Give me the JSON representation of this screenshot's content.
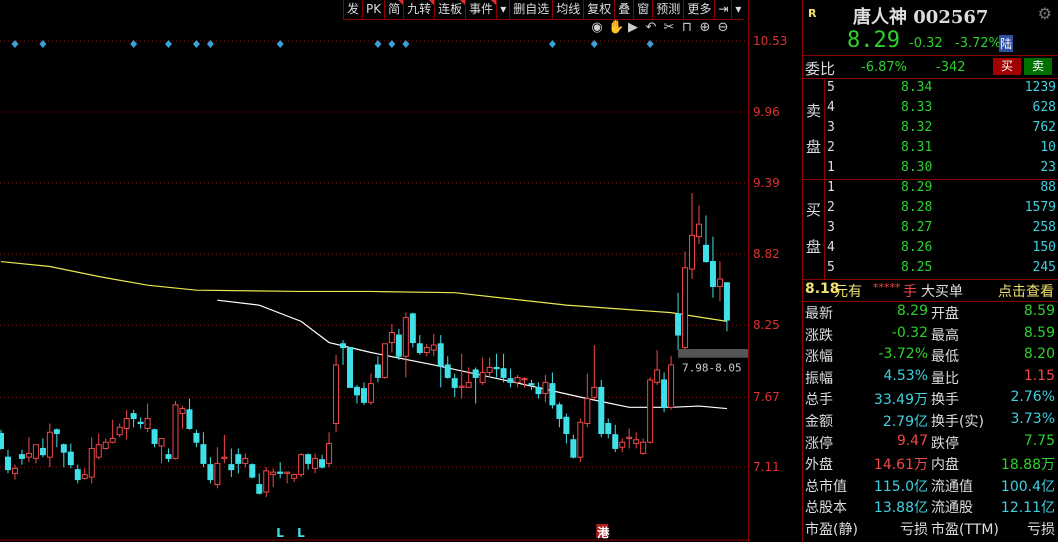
{
  "toolbar": {
    "items": [
      "发",
      "PK",
      "简",
      "九转",
      "连板",
      "事件",
      "▾",
      "删自选",
      "均线",
      "复权",
      "叠",
      "窗",
      "预测",
      "更多",
      "⇥",
      "▾"
    ],
    "view_icons": [
      "eye-icon",
      "hand-icon",
      "play-icon",
      "undo-icon",
      "scissors-icon",
      "lock-icon",
      "zoom-in-icon",
      "zoom-out-icon"
    ]
  },
  "colors": {
    "up": "#f04848",
    "down": "#40e0e8",
    "ma_long": "#e8e850",
    "ma_short": "#ffffff",
    "marker": "#3aa0d8",
    "grid": "#8b1010"
  },
  "chart_data": {
    "type": "candlestick",
    "y_ticks": [
      10.53,
      9.96,
      9.39,
      8.82,
      8.25,
      7.67,
      7.11
    ],
    "ylim": [
      6.69,
      10.86
    ],
    "grid": true,
    "candles": [
      [
        7.38,
        7.41,
        7.25,
        7.26
      ],
      [
        7.19,
        7.25,
        7.06,
        7.09
      ],
      [
        7.06,
        7.13,
        7.01,
        7.1
      ],
      [
        7.21,
        7.25,
        7.13,
        7.18
      ],
      [
        7.19,
        7.35,
        7.15,
        7.22
      ],
      [
        7.18,
        7.29,
        7.14,
        7.29
      ],
      [
        7.26,
        7.34,
        7.19,
        7.21
      ],
      [
        7.19,
        7.46,
        7.11,
        7.39
      ],
      [
        7.41,
        7.42,
        7.27,
        7.38
      ],
      [
        7.29,
        7.3,
        7.11,
        7.23
      ],
      [
        7.23,
        7.3,
        7.1,
        7.13
      ],
      [
        7.09,
        7.13,
        6.98,
        7.01
      ],
      [
        7.02,
        7.1,
        7.01,
        7.05
      ],
      [
        7.03,
        7.35,
        6.98,
        7.26
      ],
      [
        7.19,
        7.38,
        7.17,
        7.29
      ],
      [
        7.26,
        7.34,
        7.25,
        7.31
      ],
      [
        7.31,
        7.49,
        7.3,
        7.34
      ],
      [
        7.37,
        7.46,
        7.35,
        7.43
      ],
      [
        7.42,
        7.57,
        7.33,
        7.5
      ],
      [
        7.54,
        7.57,
        7.43,
        7.5
      ],
      [
        7.47,
        7.51,
        7.42,
        7.46
      ],
      [
        7.42,
        7.62,
        7.39,
        7.5
      ],
      [
        7.41,
        7.42,
        7.27,
        7.3
      ],
      [
        7.28,
        7.34,
        7.14,
        7.34
      ],
      [
        7.21,
        7.26,
        7.15,
        7.18
      ],
      [
        7.18,
        7.64,
        7.17,
        7.61
      ],
      [
        7.54,
        7.6,
        7.42,
        7.58
      ],
      [
        7.57,
        7.66,
        7.41,
        7.42
      ],
      [
        7.38,
        7.41,
        7.27,
        7.31
      ],
      [
        7.29,
        7.39,
        7.11,
        7.14
      ],
      [
        7.13,
        7.19,
        6.98,
        7.01
      ],
      [
        6.97,
        7.27,
        6.94,
        7.14
      ],
      [
        7.18,
        7.37,
        7.14,
        7.19
      ],
      [
        7.13,
        7.26,
        7.03,
        7.09
      ],
      [
        7.21,
        7.26,
        7.06,
        7.14
      ],
      [
        7.14,
        7.22,
        7.11,
        7.18
      ],
      [
        7.13,
        7.14,
        7.02,
        7.03
      ],
      [
        6.97,
        7.06,
        6.89,
        6.9
      ],
      [
        6.91,
        7.11,
        6.87,
        7.08
      ],
      [
        7.05,
        7.1,
        6.95,
        7.07
      ],
      [
        7.07,
        7.15,
        7.02,
        7.06
      ],
      [
        7.06,
        7.07,
        6.98,
        7.07
      ],
      [
        7.02,
        7.06,
        6.99,
        7.05
      ],
      [
        7.05,
        7.22,
        7.03,
        7.21
      ],
      [
        7.21,
        7.22,
        7.09,
        7.14
      ],
      [
        7.1,
        7.22,
        7.06,
        7.18
      ],
      [
        7.17,
        7.21,
        7.1,
        7.11
      ],
      [
        7.14,
        7.39,
        7.11,
        7.3
      ],
      [
        7.46,
        8.01,
        7.39,
        7.93
      ],
      [
        8.1,
        8.13,
        7.93,
        8.07
      ],
      [
        8.07,
        8.07,
        7.75,
        7.75
      ],
      [
        7.75,
        7.77,
        7.62,
        7.69
      ],
      [
        7.74,
        7.79,
        7.61,
        7.63
      ],
      [
        7.63,
        7.86,
        7.61,
        7.78
      ],
      [
        7.93,
        8.0,
        7.79,
        7.83
      ],
      [
        7.83,
        8.1,
        7.82,
        8.1
      ],
      [
        8.11,
        8.26,
        8.03,
        8.19
      ],
      [
        8.17,
        8.22,
        7.97,
        8.0
      ],
      [
        8.0,
        8.35,
        7.83,
        8.31
      ],
      [
        8.34,
        8.35,
        8.07,
        8.11
      ],
      [
        8.1,
        8.17,
        8.01,
        8.03
      ],
      [
        8.03,
        8.1,
        8.0,
        8.07
      ],
      [
        8.05,
        8.18,
        8.0,
        8.09
      ],
      [
        8.1,
        8.17,
        7.75,
        7.92
      ],
      [
        7.93,
        8.0,
        7.82,
        7.83
      ],
      [
        7.82,
        7.86,
        7.67,
        7.75
      ],
      [
        7.75,
        8.02,
        7.66,
        7.76
      ],
      [
        7.75,
        7.91,
        7.75,
        7.79
      ],
      [
        7.89,
        7.91,
        7.62,
        7.83
      ],
      [
        7.79,
        7.99,
        7.77,
        7.87
      ],
      [
        7.87,
        7.99,
        7.83,
        7.91
      ],
      [
        7.91,
        8.02,
        7.83,
        7.9
      ],
      [
        7.9,
        8.02,
        7.79,
        7.83
      ],
      [
        7.82,
        7.9,
        7.75,
        7.79
      ],
      [
        7.79,
        7.85,
        7.75,
        7.83
      ],
      [
        7.82,
        7.83,
        7.75,
        7.82
      ],
      [
        7.78,
        7.81,
        7.73,
        7.77
      ],
      [
        7.75,
        7.79,
        7.66,
        7.7
      ],
      [
        7.7,
        7.85,
        7.63,
        7.79
      ],
      [
        7.78,
        7.87,
        7.58,
        7.61
      ],
      [
        7.61,
        7.63,
        7.43,
        7.5
      ],
      [
        7.51,
        7.54,
        7.3,
        7.38
      ],
      [
        7.33,
        7.37,
        7.18,
        7.19
      ],
      [
        7.19,
        7.5,
        7.15,
        7.47
      ],
      [
        7.46,
        7.86,
        7.43,
        7.66
      ],
      [
        7.67,
        8.09,
        7.65,
        7.75
      ],
      [
        7.75,
        7.81,
        7.35,
        7.38
      ],
      [
        7.46,
        7.5,
        7.34,
        7.38
      ],
      [
        7.37,
        7.45,
        7.23,
        7.26
      ],
      [
        7.27,
        7.34,
        7.23,
        7.31
      ],
      [
        7.34,
        7.42,
        7.26,
        7.35
      ],
      [
        7.3,
        7.39,
        7.26,
        7.33
      ],
      [
        7.22,
        7.34,
        7.21,
        7.31
      ],
      [
        7.31,
        7.83,
        7.3,
        7.81
      ],
      [
        7.79,
        8.05,
        7.77,
        7.89
      ],
      [
        7.81,
        7.87,
        7.55,
        7.59
      ],
      [
        7.59,
        8.0,
        7.57,
        7.93
      ],
      [
        8.34,
        8.51,
        8.05,
        8.17
      ],
      [
        8.07,
        8.84,
        8.05,
        8.71
      ],
      [
        8.7,
        9.31,
        8.62,
        8.97
      ],
      [
        8.96,
        9.21,
        8.9,
        9.06
      ],
      [
        8.89,
        9.13,
        8.75,
        8.76
      ],
      [
        8.76,
        8.96,
        8.47,
        8.56
      ],
      [
        8.56,
        8.76,
        8.44,
        8.62
      ],
      [
        8.59,
        8.59,
        8.2,
        8.29
      ]
    ],
    "ma_lines": [
      {
        "color": "#e8e850",
        "points": [
          [
            0,
            8.76
          ],
          [
            7,
            8.72
          ],
          [
            14,
            8.64
          ],
          [
            21,
            8.57
          ],
          [
            28,
            8.53
          ],
          [
            43,
            8.52
          ],
          [
            53,
            8.52
          ],
          [
            65,
            8.51
          ],
          [
            81,
            8.41
          ],
          [
            96,
            8.35
          ],
          [
            104,
            8.28
          ]
        ]
      },
      {
        "color": "#ffffff",
        "points": [
          [
            31,
            8.45
          ],
          [
            37,
            8.41
          ],
          [
            43,
            8.28
          ],
          [
            47,
            8.11
          ],
          [
            53,
            8.03
          ],
          [
            62,
            7.93
          ],
          [
            72,
            7.81
          ],
          [
            84,
            7.66
          ],
          [
            90,
            7.59
          ],
          [
            96,
            7.59
          ],
          [
            100,
            7.6
          ],
          [
            104,
            7.58
          ]
        ]
      }
    ],
    "event_markers": [
      2,
      6,
      19,
      24,
      28,
      30,
      40,
      54,
      56,
      58,
      79,
      85,
      93
    ],
    "bottom_markers": [
      {
        "index": 40,
        "label": "L"
      },
      {
        "index": 43,
        "label": "L"
      },
      {
        "index": 86,
        "label": "港"
      }
    ],
    "gap": {
      "label": "7.98-8.05",
      "low": 7.98,
      "high": 8.05,
      "start_index": 97
    }
  },
  "quote": {
    "flag": "R",
    "title": "唐人神 002567",
    "price": "8.29",
    "change": "-0.32",
    "change_pct": "-3.72%",
    "market_badge": "陆",
    "weibi_label": "委比",
    "weibi_pct": "-6.87%",
    "weibi_diff": "-342",
    "buy_btn": "买",
    "sell_btn": "卖",
    "sell_label": [
      "卖",
      "盘"
    ],
    "buy_label": [
      "买",
      "盘"
    ],
    "asks": [
      {
        "level": "5",
        "price": "8.34",
        "vol": "1239"
      },
      {
        "level": "4",
        "price": "8.33",
        "vol": "628"
      },
      {
        "level": "3",
        "price": "8.32",
        "vol": "762"
      },
      {
        "level": "2",
        "price": "8.31",
        "vol": "10"
      },
      {
        "level": "1",
        "price": "8.30",
        "vol": "23"
      }
    ],
    "bids": [
      {
        "level": "1",
        "price": "8.29",
        "vol": "88"
      },
      {
        "level": "2",
        "price": "8.28",
        "vol": "1579"
      },
      {
        "level": "3",
        "price": "8.27",
        "vol": "258"
      },
      {
        "level": "4",
        "price": "8.26",
        "vol": "150"
      },
      {
        "level": "5",
        "price": "8.25",
        "vol": "245"
      }
    ],
    "big_order": {
      "price": "8.18",
      "text1": "元有",
      "stars": "*****",
      "text2": "手",
      "text3": "大买单",
      "link": "点击查看"
    },
    "stats": [
      {
        "l1": "最新",
        "v1": "8.29",
        "c1": "g",
        "l2": "开盘",
        "v2": "8.59",
        "c2": "g"
      },
      {
        "l1": "涨跌",
        "v1": "-0.32",
        "c1": "g",
        "l2": "最高",
        "v2": "8.59",
        "c2": "g"
      },
      {
        "l1": "涨幅",
        "v1": "-3.72%",
        "c1": "g",
        "l2": "最低",
        "v2": "8.20",
        "c2": "g"
      },
      {
        "l1": "振幅",
        "v1": "4.53%",
        "c1": "c",
        "l2": "量比",
        "v2": "1.15",
        "c2": "r"
      },
      {
        "l1": "总手",
        "v1": "33.49万",
        "c1": "c",
        "l2": "换手",
        "v2": "2.76%",
        "c2": "c"
      },
      {
        "l1": "金额",
        "v1": "2.79亿",
        "c1": "c",
        "l2": "换手(实)",
        "v2": "3.73%",
        "c2": "c"
      },
      {
        "l1": "涨停",
        "v1": "9.47",
        "c1": "r",
        "l2": "跌停",
        "v2": "7.75",
        "c2": "g"
      },
      {
        "l1": "外盘",
        "v1": "14.61万",
        "c1": "r",
        "l2": "内盘",
        "v2": "18.88万",
        "c2": "g"
      },
      {
        "l1": "总市值",
        "v1": "115.0亿",
        "c1": "c",
        "l2": "流通值",
        "v2": "100.4亿",
        "c2": "c"
      },
      {
        "l1": "总股本",
        "v1": "13.88亿",
        "c1": "c",
        "l2": "流通股",
        "v2": "12.11亿",
        "c2": "c"
      },
      {
        "l1": "市盈(静)",
        "v1": "亏损",
        "c1": "w",
        "l2": "市盈(TTM)",
        "v2": "亏损",
        "c2": "w"
      }
    ]
  }
}
